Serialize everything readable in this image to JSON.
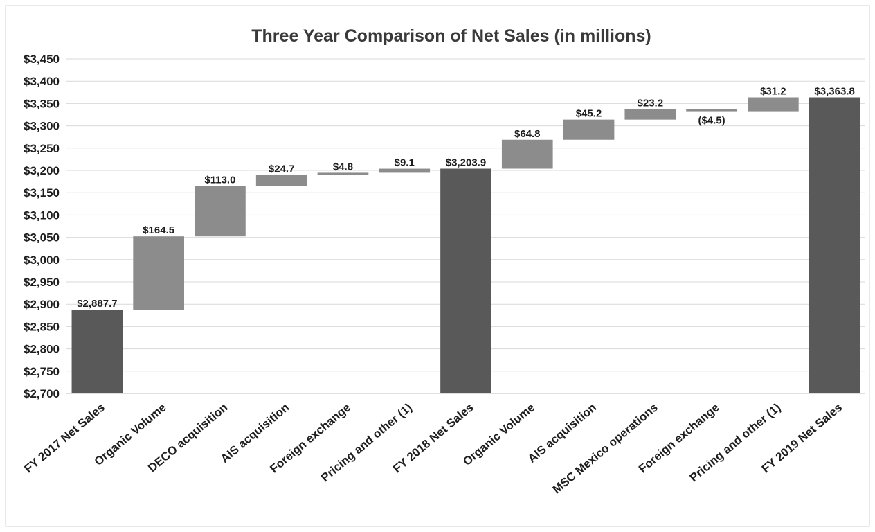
{
  "chart_data": {
    "type": "bar",
    "subtype": "waterfall",
    "title": "Three Year Comparison of Net Sales (in millions)",
    "xlabel": "",
    "ylabel": "",
    "ylim": [
      2700,
      3450
    ],
    "yticks": [
      2700,
      2750,
      2800,
      2850,
      2900,
      2950,
      3000,
      3050,
      3100,
      3150,
      3200,
      3250,
      3300,
      3350,
      3400,
      3450
    ],
    "ytick_labels": [
      "$2,700",
      "$2,750",
      "$2,800",
      "$2,850",
      "$2,900",
      "$2,950",
      "$3,000",
      "$3,050",
      "$3,100",
      "$3,150",
      "$3,200",
      "$3,250",
      "$3,300",
      "$3,350",
      "$3,400",
      "$3,450"
    ],
    "grid": true,
    "legend": "none",
    "colors": {
      "total": "#595959",
      "change": "#8c8c8c",
      "grid": "#d9d9d9",
      "frame": "#d0d0d0"
    },
    "categories": [
      "FY 2017 Net Sales",
      "Organic Volume",
      "DECO acquisition",
      "AIS acquisition",
      "Foreign exchange",
      "Pricing and other (1)",
      "FY 2018 Net Sales",
      "Organic Volume",
      "AIS acquisition",
      "MSC Mexico operations",
      "Foreign exchange",
      "Pricing and other (1)",
      "FY 2019 Net Sales"
    ],
    "kinds": [
      "total",
      "change",
      "change",
      "change",
      "change",
      "change",
      "total",
      "change",
      "change",
      "change",
      "change",
      "change",
      "total"
    ],
    "values": [
      2887.7,
      164.5,
      113.0,
      24.7,
      4.8,
      9.1,
      3203.9,
      64.8,
      45.2,
      23.2,
      -4.5,
      31.2,
      3363.8
    ],
    "data_labels": [
      "$2,887.7",
      "$164.5",
      "$113.0",
      "$24.7",
      "$4.8",
      "$9.1",
      "$3,203.9",
      "$64.8",
      "$45.2",
      "$23.2",
      "($4.5)",
      "$31.2",
      "$3,363.8"
    ]
  }
}
